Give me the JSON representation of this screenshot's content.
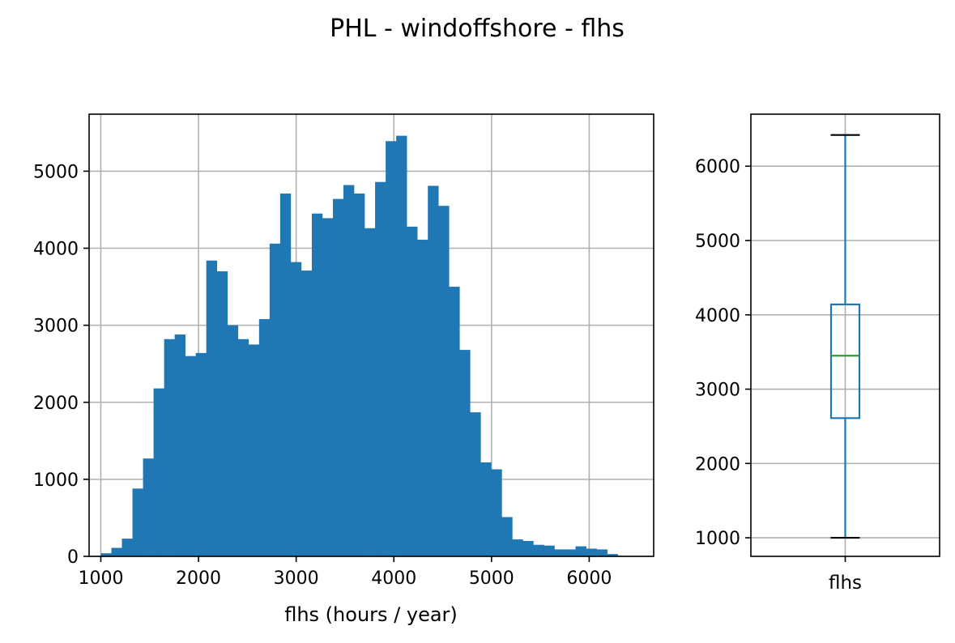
{
  "figure": {
    "title": "PHL - windoffshore - flhs"
  },
  "chart_data": [
    {
      "type": "histogram",
      "xlabel": "flhs (hours / year)",
      "ylabel": "",
      "xlim": [
        880,
        6660
      ],
      "ylim": [
        0,
        5740
      ],
      "xticks": [
        1000,
        2000,
        3000,
        4000,
        5000,
        6000
      ],
      "yticks": [
        0,
        1000,
        2000,
        3000,
        4000,
        5000
      ],
      "grid": true,
      "color": "#1f77b4",
      "bins": {
        "start": 1000,
        "width": 108
      },
      "values": [
        40,
        110,
        230,
        880,
        1270,
        2180,
        2820,
        2880,
        2600,
        2640,
        3840,
        3700,
        3000,
        2820,
        2750,
        3080,
        4060,
        4710,
        3820,
        3710,
        4450,
        4390,
        4640,
        4820,
        4710,
        4260,
        4860,
        5390,
        5460,
        4280,
        4110,
        4810,
        4550,
        3500,
        2680,
        1870,
        1220,
        1130,
        510,
        220,
        200,
        150,
        140,
        90,
        90,
        130,
        100,
        90,
        30
      ]
    },
    {
      "type": "boxplot",
      "categories": [
        "flhs"
      ],
      "ylim": [
        750,
        6700
      ],
      "yticks": [
        1000,
        2000,
        3000,
        4000,
        5000,
        6000
      ],
      "grid": true,
      "box": {
        "min": 1000,
        "q1": 2610,
        "median": 3450,
        "q3": 4140,
        "max": 6420
      },
      "colors": {
        "box": "#1f77b4",
        "median": "#2ca02c",
        "whisker_cap": "#000000"
      }
    }
  ]
}
